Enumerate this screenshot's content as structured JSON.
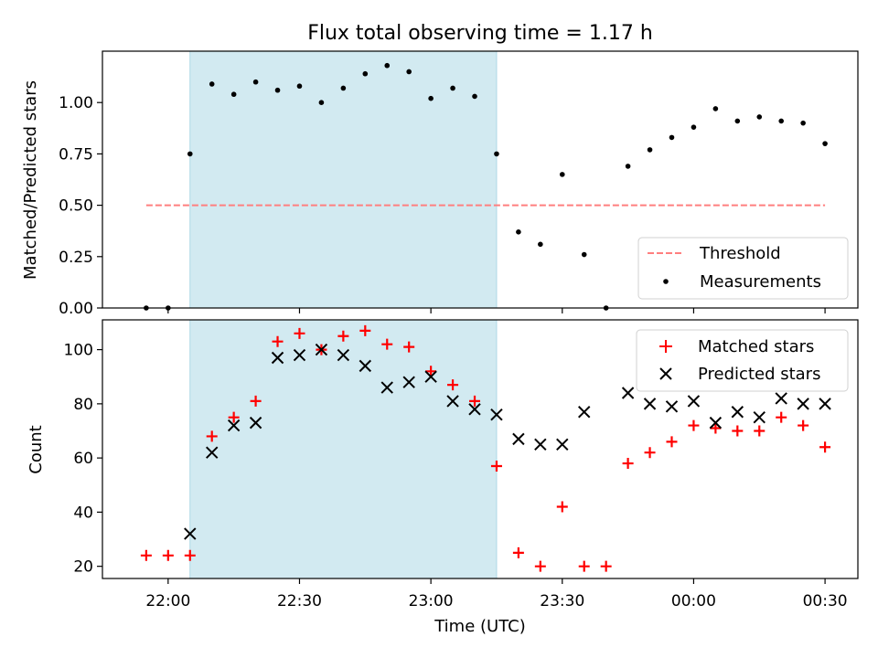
{
  "chart_data": {
    "title": "Flux total observing time = 1.17 h",
    "xlabel": "Time (UTC)",
    "x_tick_labels": [
      "22:00",
      "22:30",
      "23:00",
      "23:30",
      "00:00",
      "00:30"
    ],
    "x_tick_hours": [
      22.0,
      22.5,
      23.0,
      23.5,
      24.0,
      24.5
    ],
    "xlim_hours": [
      21.75,
      24.625
    ],
    "shaded_interval_hours": [
      22.0833,
      23.25
    ],
    "shade_color": "#add8e6",
    "panels": [
      {
        "type": "scatter",
        "ylabel": "Matched/Predicted stars",
        "ylim": [
          0,
          1.25
        ],
        "y_ticks": [
          0.0,
          0.25,
          0.5,
          0.75,
          1.0
        ],
        "y_tick_labels": [
          "0.00",
          "0.25",
          "0.50",
          "0.75",
          "1.00"
        ],
        "legend_position": "lower-right",
        "series": [
          {
            "name": "Threshold",
            "kind": "dashed-line",
            "color": "#ff7f7f",
            "x": [
              "21:55",
              "00:30"
            ],
            "y": [
              0.5,
              0.5
            ]
          },
          {
            "name": "Measurements",
            "kind": "dot",
            "color": "#000000",
            "x": [
              "21:55",
              "22:00",
              "22:05",
              "22:10",
              "22:15",
              "22:20",
              "22:25",
              "22:30",
              "22:35",
              "22:40",
              "22:45",
              "22:50",
              "22:55",
              "23:00",
              "23:05",
              "23:10",
              "23:15",
              "23:20",
              "23:25",
              "23:30",
              "23:35",
              "23:40",
              "23:45",
              "23:50",
              "23:55",
              "00:00",
              "00:05",
              "00:10",
              "00:15",
              "00:20",
              "00:25",
              "00:30"
            ],
            "y": [
              0.0,
              0.0,
              0.75,
              1.09,
              1.04,
              1.1,
              1.06,
              1.08,
              1.0,
              1.07,
              1.14,
              1.18,
              1.15,
              1.02,
              1.07,
              1.03,
              0.75,
              0.37,
              0.31,
              0.65,
              0.26,
              0.0,
              0.69,
              0.77,
              0.83,
              0.88,
              0.97,
              0.91,
              0.93,
              0.91,
              0.9,
              0.8
            ]
          }
        ]
      },
      {
        "type": "scatter",
        "ylabel": "Count",
        "ylim": [
          15.5,
          111
        ],
        "y_ticks": [
          20,
          40,
          60,
          80,
          100
        ],
        "y_tick_labels": [
          "20",
          "40",
          "60",
          "80",
          "100"
        ],
        "legend_position": "upper-right",
        "series": [
          {
            "name": "Matched stars",
            "kind": "plus",
            "color": "#ff0000",
            "x": [
              "21:55",
              "22:00",
              "22:05",
              "22:10",
              "22:15",
              "22:20",
              "22:25",
              "22:30",
              "22:35",
              "22:40",
              "22:45",
              "22:50",
              "22:55",
              "23:00",
              "23:05",
              "23:10",
              "23:15",
              "23:20",
              "23:25",
              "23:30",
              "23:35",
              "23:40",
              "23:45",
              "23:50",
              "23:55",
              "00:00",
              "00:05",
              "00:10",
              "00:15",
              "00:20",
              "00:25",
              "00:30"
            ],
            "y": [
              24,
              24,
              24,
              68,
              75,
              81,
              103,
              106,
              100,
              105,
              107,
              102,
              101,
              92,
              87,
              81,
              57,
              25,
              20,
              42,
              20,
              20,
              58,
              62,
              66,
              72,
              71,
              70,
              70,
              75,
              72,
              64
            ]
          },
          {
            "name": "Predicted stars",
            "kind": "x",
            "color": "#000000",
            "x": [
              "22:05",
              "22:10",
              "22:15",
              "22:20",
              "22:25",
              "22:30",
              "22:35",
              "22:40",
              "22:45",
              "22:50",
              "22:55",
              "23:00",
              "23:05",
              "23:10",
              "23:15",
              "23:20",
              "23:25",
              "23:30",
              "23:35",
              "23:45",
              "23:50",
              "23:55",
              "00:00",
              "00:05",
              "00:10",
              "00:15",
              "00:20",
              "00:25",
              "00:30"
            ],
            "y": [
              32,
              62,
              72,
              73,
              97,
              98,
              100,
              98,
              94,
              86,
              88,
              90,
              81,
              78,
              76,
              67,
              65,
              65,
              77,
              84,
              80,
              79,
              81,
              73,
              77,
              75,
              82,
              80,
              80
            ]
          }
        ]
      }
    ]
  }
}
